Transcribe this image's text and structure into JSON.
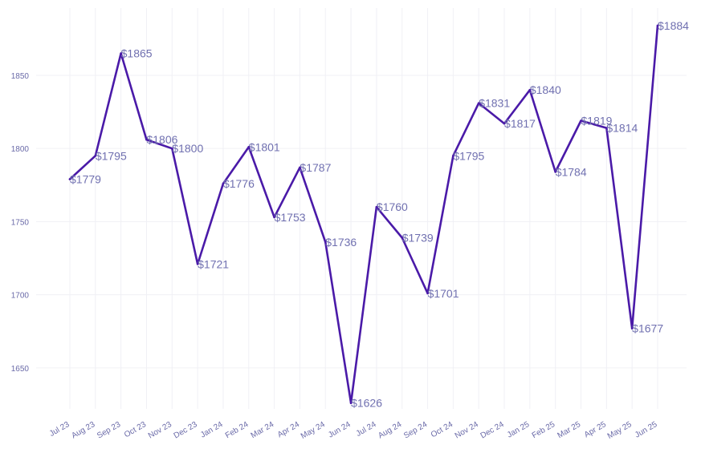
{
  "chart_data": {
    "type": "line",
    "title": "",
    "xlabel": "",
    "ylabel": "",
    "categories": [
      "Jul 23",
      "Aug 23",
      "Sep 23",
      "Oct 23",
      "Nov 23",
      "Dec 23",
      "Jan 24",
      "Feb 24",
      "Mar 24",
      "Apr 24",
      "May 24",
      "Jun 24",
      "Jul 24",
      "Aug 24",
      "Sep 24",
      "Oct 24",
      "Nov 24",
      "Dec 24",
      "Jan 25",
      "Feb 25",
      "Mar 25",
      "Apr 25",
      "May 25",
      "Jun 25"
    ],
    "series": [
      {
        "values": [
          1779,
          1795,
          1865,
          1806,
          1800,
          1721,
          1776,
          1801,
          1753,
          1787,
          1736,
          1626,
          1760,
          1739,
          1701,
          1795,
          1831,
          1817,
          1840,
          1784,
          1819,
          1814,
          1677,
          1884
        ],
        "labels": [
          "$1779",
          "$1795",
          "$1865",
          "$1806",
          "$1800",
          "$1721",
          "$1776",
          "$1801",
          "$1753",
          "$1787",
          "$1736",
          "$1626",
          "$1760",
          "$1739",
          "$1701",
          "$1795",
          "$1831",
          "$1817",
          "$1840",
          "$1784",
          "$1819",
          "$1814",
          "$1677",
          "$1884"
        ],
        "color": "#4a1aa8"
      }
    ],
    "y_ticks": [
      1650,
      1700,
      1750,
      1800,
      1850
    ],
    "y_tick_labels": [
      "1650",
      "1700",
      "1750",
      "1800",
      "1850"
    ],
    "ylim": [
      1622,
      1896
    ],
    "grid": true,
    "legend": "none",
    "colors": {
      "line": "#4a1aa8",
      "labels": "#7070b0",
      "ticks": "#6a6aa8",
      "grid": "#f0f0f5"
    }
  }
}
